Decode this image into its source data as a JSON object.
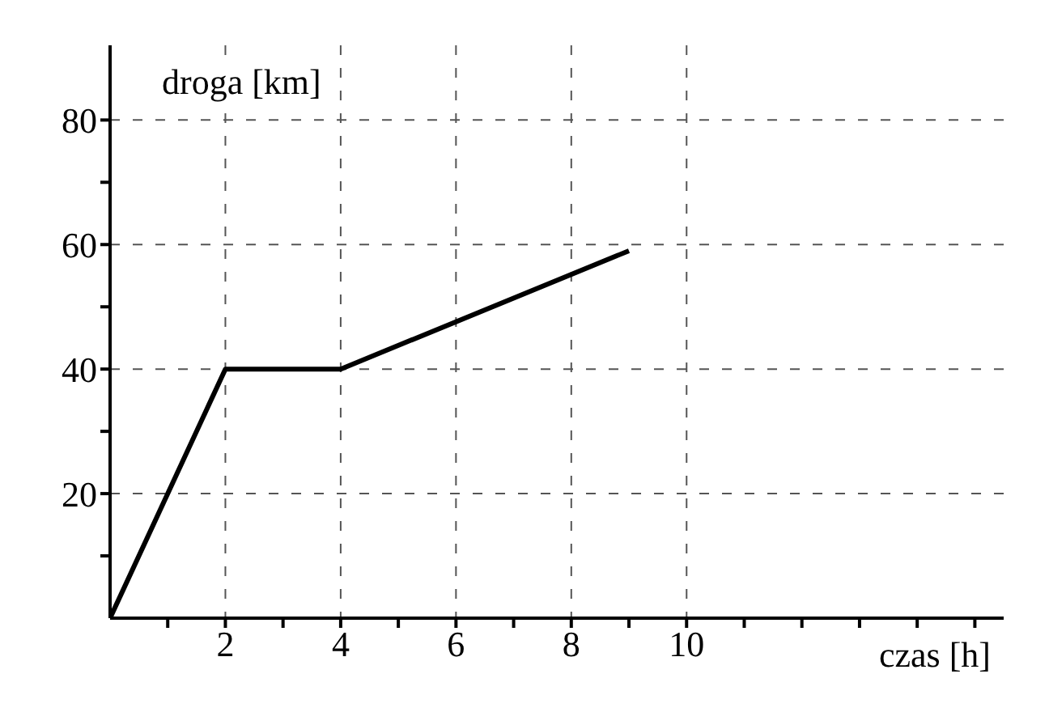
{
  "chart_data": {
    "type": "line",
    "xlabel": "czas [h]",
    "ylabel": "droga [km]",
    "x": [
      0,
      2,
      4,
      9
    ],
    "series": [
      {
        "color": "#000000",
        "values": [
          0,
          40,
          40,
          59
        ]
      }
    ],
    "xlim": [
      0,
      15.5
    ],
    "ylim": [
      0,
      92
    ],
    "xticks": [
      {
        "value": 1,
        "label": null
      },
      2,
      {
        "value": 3,
        "label": null
      },
      4,
      {
        "value": 5,
        "label": null
      },
      6,
      {
        "value": 7,
        "label": null
      },
      8,
      {
        "value": 9,
        "label": null
      },
      10,
      {
        "value": 11,
        "label": null
      },
      {
        "value": 12,
        "label": null
      },
      {
        "value": 13,
        "label": null
      },
      {
        "value": 14,
        "label": null
      },
      {
        "value": 15,
        "label": null
      }
    ],
    "yticks": [
      {
        "value": 10,
        "label": null
      },
      20,
      {
        "value": 30,
        "label": null
      },
      40,
      {
        "value": 50,
        "label": null
      },
      60,
      {
        "value": 70,
        "label": null
      },
      80
    ],
    "grid": true,
    "marker": "none",
    "line_style": "solid"
  }
}
